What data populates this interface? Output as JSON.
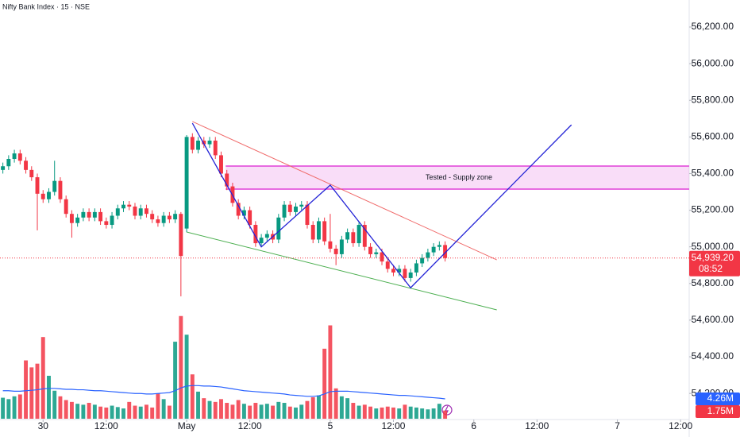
{
  "chart_data": {
    "type": "candlestick",
    "title": "Nifty Bank Index · 15 · NSE",
    "up_color": "#089981",
    "down_color": "#f23645",
    "grid": false,
    "xlim": [
      -0.5,
      119.5
    ],
    "xticks": [
      {
        "value": 7,
        "label": "30"
      },
      {
        "value": 18,
        "label": "12:00"
      },
      {
        "value": 32,
        "label": "May"
      },
      {
        "value": 43,
        "label": "12:00"
      },
      {
        "value": 57,
        "label": "5"
      },
      {
        "value": 68,
        "label": "12:00"
      },
      {
        "value": 82,
        "label": "6"
      },
      {
        "value": 93,
        "label": "12:00"
      },
      {
        "value": 107,
        "label": "7"
      },
      {
        "value": 118,
        "label": "12:00"
      }
    ],
    "ylim": [
      54057.5,
      56347.5
    ],
    "yticks": [
      {
        "value": 54200,
        "label": "54,200.00"
      },
      {
        "value": 54400,
        "label": "54,400.00"
      },
      {
        "value": 54600,
        "label": "54,600.00"
      },
      {
        "value": 54800,
        "label": "54,800.00"
      },
      {
        "value": 55000,
        "label": "55,000.00"
      },
      {
        "value": 55200,
        "label": "55,200.00"
      },
      {
        "value": 55400,
        "label": "55,400.00"
      },
      {
        "value": 55600,
        "label": "55,600.00"
      },
      {
        "value": 55800,
        "label": "55,800.00"
      },
      {
        "value": 56000,
        "label": "56,000.00"
      },
      {
        "value": 56200,
        "label": "56,200.00"
      }
    ],
    "open": [
      55420,
      55440,
      55480,
      55510,
      55470,
      55420,
      55380,
      55290,
      55260,
      55300,
      55360,
      55260,
      55180,
      55130,
      55160,
      55190,
      55160,
      55190,
      55140,
      55120,
      55170,
      55210,
      55230,
      55220,
      55170,
      55210,
      55180,
      55150,
      55130,
      55170,
      55150,
      55180,
      55100,
      55600,
      55530,
      55580,
      55560,
      55580,
      55500,
      55400,
      55330,
      55240,
      55170,
      55200,
      55120,
      55020,
      55050,
      55070,
      55040,
      55160,
      55230,
      55190,
      55220,
      55230,
      55120,
      55040,
      55140,
      55030,
      54990,
      54960,
      55040,
      55080,
      55020,
      55120,
      55000,
      54960,
      54970,
      54920,
      54880,
      54860,
      54880,
      54830,
      54860,
      54910,
      54940,
      54970,
      55000,
      55010
    ],
    "high": [
      55460,
      55500,
      55530,
      55530,
      55490,
      55440,
      55400,
      55310,
      55320,
      55470,
      55380,
      55280,
      55200,
      55180,
      55210,
      55210,
      55210,
      55210,
      55160,
      55190,
      55230,
      55250,
      55250,
      55240,
      55230,
      55230,
      55200,
      55170,
      55190,
      55190,
      55200,
      55190,
      55610,
      55620,
      55600,
      55600,
      55600,
      55600,
      55520,
      55420,
      55350,
      55260,
      55220,
      55220,
      55140,
      55070,
      55090,
      55090,
      55180,
      55250,
      55250,
      55240,
      55250,
      55250,
      55140,
      55160,
      55160,
      55180,
      55010,
      55060,
      55100,
      55100,
      55140,
      55140,
      55020,
      54990,
      54990,
      54940,
      54900,
      54900,
      54900,
      54880,
      54930,
      54960,
      54990,
      55020,
      55030,
      55030
    ],
    "low": [
      55400,
      55420,
      55460,
      55450,
      55400,
      55360,
      55090,
      55240,
      55240,
      55280,
      55240,
      55160,
      55050,
      55110,
      55140,
      55140,
      55140,
      55120,
      55100,
      55100,
      55150,
      55190,
      55200,
      55150,
      55150,
      55160,
      55130,
      55110,
      55110,
      55130,
      55130,
      54730,
      55080,
      55510,
      55510,
      55540,
      55540,
      55480,
      55380,
      55310,
      55220,
      55150,
      55150,
      55100,
      55000,
      55000,
      55030,
      55020,
      55020,
      55140,
      55170,
      55170,
      55200,
      55100,
      55020,
      55020,
      55010,
      54970,
      54900,
      54940,
      55020,
      55000,
      55000,
      54980,
      54940,
      54940,
      54900,
      54860,
      54840,
      54840,
      54810,
      54810,
      54840,
      54890,
      54920,
      54950,
      54980,
      54920
    ],
    "close": [
      55440,
      55480,
      55510,
      55470,
      55420,
      55380,
      55290,
      55260,
      55300,
      55360,
      55260,
      55180,
      55130,
      55160,
      55190,
      55160,
      55190,
      55140,
      55120,
      55170,
      55210,
      55230,
      55220,
      55170,
      55210,
      55180,
      55150,
      55130,
      55170,
      55150,
      55180,
      54950,
      55600,
      55530,
      55580,
      55560,
      55580,
      55500,
      55400,
      55330,
      55240,
      55170,
      55200,
      55120,
      55020,
      55050,
      55070,
      55040,
      55160,
      55230,
      55190,
      55220,
      55230,
      55120,
      55040,
      55140,
      55030,
      54990,
      54960,
      55040,
      55080,
      55020,
      55120,
      55000,
      54960,
      54970,
      54920,
      54880,
      54860,
      54880,
      54830,
      54860,
      54910,
      54940,
      54970,
      55000,
      55010,
      54939.2
    ],
    "last_price": {
      "value": 54939.2,
      "label": "54,939.20"
    },
    "countdown": "08:52",
    "volume": {
      "vlim": [
        0,
        24
      ],
      "values": [
        4.5,
        4.2,
        4.8,
        5.2,
        12.5,
        11.0,
        11.8,
        17.5,
        9.2,
        6.0,
        4.8,
        4.0,
        3.6,
        3.2,
        3.0,
        3.4,
        3.0,
        2.6,
        2.4,
        2.8,
        2.5,
        2.2,
        3.6,
        2.8,
        2.6,
        3.0,
        2.4,
        5.4,
        4.2,
        2.8,
        16.5,
        22.0,
        18.0,
        9.5,
        5.8,
        4.4,
        3.8,
        3.6,
        4.2,
        3.4,
        3.0,
        4.0,
        3.2,
        2.8,
        3.4,
        3.0,
        3.2,
        2.8,
        3.6,
        3.4,
        2.6,
        2.4,
        3.0,
        3.8,
        4.6,
        5.0,
        15.0,
        20.0,
        6.5,
        4.8,
        4.4,
        3.4,
        2.8,
        3.0,
        2.6,
        2.2,
        2.4,
        2.6,
        2.4,
        2.2,
        3.0,
        2.6,
        2.4,
        2.2,
        2.0,
        2.2,
        3.2,
        1.75
      ],
      "last_label": "1.75M",
      "ma_color": "#2962ff",
      "ma": [
        6.0,
        6.0,
        5.9,
        5.9,
        6.0,
        6.1,
        6.2,
        6.4,
        6.5,
        6.5,
        6.4,
        6.3,
        6.3,
        6.2,
        6.2,
        6.1,
        6.0,
        6.0,
        5.9,
        5.8,
        5.7,
        5.6,
        5.5,
        5.4,
        5.4,
        5.3,
        5.3,
        5.4,
        5.5,
        5.6,
        6.0,
        6.6,
        7.0,
        7.1,
        7.1,
        7.0,
        7.0,
        6.9,
        6.8,
        6.6,
        6.4,
        6.2,
        6.0,
        5.9,
        5.8,
        5.7,
        5.6,
        5.5,
        5.4,
        5.3,
        5.1,
        5.0,
        4.9,
        4.8,
        4.8,
        4.9,
        5.3,
        5.8,
        5.9,
        5.9,
        5.9,
        5.8,
        5.7,
        5.6,
        5.5,
        5.4,
        5.3,
        5.2,
        5.1,
        5.0,
        5.0,
        4.9,
        4.8,
        4.7,
        4.6,
        4.5,
        4.4,
        4.26
      ],
      "ma_label": "4.26M"
    },
    "drawings": {
      "upper_trendline": {
        "color": "#f06a6a",
        "x": [
          33,
          86
        ],
        "y": [
          55684,
          54929
        ]
      },
      "lower_trendline": {
        "color": "#4caf50",
        "x": [
          32,
          86
        ],
        "y": [
          55081,
          54656
        ]
      },
      "pattern": {
        "color": "#2424d6",
        "x": [
          33,
          45,
          57,
          71,
          99
        ],
        "y": [
          55675,
          55000,
          55337,
          54777,
          55666
        ]
      },
      "supply_zone": {
        "label": "Tested - Supply zone",
        "color": "#e040d8",
        "x": [
          38.8,
          119.5
        ],
        "y": [
          55441,
          55315
        ]
      }
    }
  }
}
